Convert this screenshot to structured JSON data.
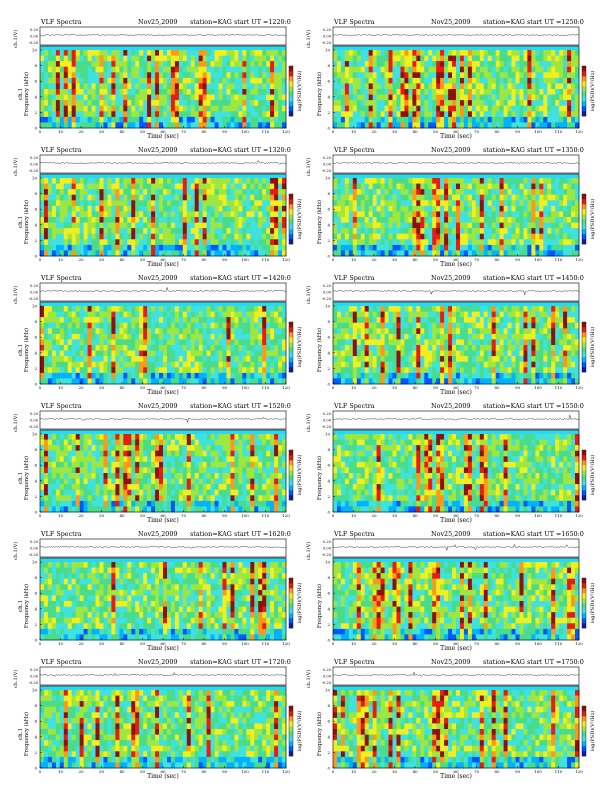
{
  "figure": {
    "header_left": "VLF Spectra",
    "date": "Nov25,2009",
    "station": "station=KAG",
    "start_prefix": "start UT ="
  },
  "chart_data": [
    {
      "type": "heatmap",
      "title": "VLF Spectra",
      "start_ut": "1220:0",
      "xlabel": "Time (sec)",
      "ylabel_top": "ch.1(V)",
      "ylabel_spec": "Frequency (kHz)",
      "ch_label": "ch.1",
      "colorbar_label": "log(PSD)(V²/Hz)",
      "xlim": [
        0,
        120
      ],
      "ylim": [
        0,
        10
      ],
      "x_ticks": [
        0,
        10,
        20,
        30,
        40,
        50,
        60,
        70,
        80,
        90,
        100,
        110,
        120
      ],
      "y_ticks": [
        0,
        2,
        4,
        6,
        8,
        10
      ],
      "top_yticks": [
        "0.20",
        "0.00",
        "-0.20"
      ],
      "intensity_scale": [
        -5,
        -3
      ]
    },
    {
      "type": "heatmap",
      "title": "VLF Spectra",
      "start_ut": "1250:0",
      "xlabel": "Time (sec)",
      "ylabel_top": "ch.1(V)",
      "ylabel_spec": "Frequency (kHz)",
      "ch_label": "",
      "colorbar_label": "log(PSD)(V²/Hz)",
      "xlim": [
        0,
        120
      ],
      "ylim": [
        0,
        10
      ],
      "x_ticks": [
        0,
        10,
        20,
        30,
        40,
        50,
        60,
        70,
        80,
        90,
        100,
        110,
        120
      ],
      "y_ticks": [
        0,
        2,
        4,
        6,
        8,
        10
      ],
      "top_yticks": [
        "0.20",
        "0.00",
        "-0.20"
      ],
      "intensity_scale": [
        -5,
        -3
      ]
    },
    {
      "type": "heatmap",
      "title": "VLF Spectra",
      "start_ut": "1320:0",
      "xlabel": "Time (sec)",
      "ylabel_top": "ch.1(V)",
      "ylabel_spec": "Frequency (kHz)",
      "ch_label": "ch.1",
      "colorbar_label": "log(PSD)(V²/Hz)",
      "xlim": [
        0,
        120
      ],
      "ylim": [
        0,
        10
      ],
      "x_ticks": [
        0,
        10,
        20,
        30,
        40,
        50,
        60,
        70,
        80,
        90,
        100,
        110,
        120
      ],
      "y_ticks": [
        0,
        2,
        4,
        6,
        8,
        10
      ],
      "top_yticks": [
        "0.20",
        "0.00",
        "-0.20"
      ],
      "intensity_scale": [
        -5,
        -3
      ]
    },
    {
      "type": "heatmap",
      "title": "VLF Spectra",
      "start_ut": "1350:0",
      "xlabel": "Time (sec)",
      "ylabel_top": "ch.1(V)",
      "ylabel_spec": "Frequency (kHz)",
      "ch_label": "",
      "colorbar_label": "log(PSD)(V²/Hz)",
      "xlim": [
        0,
        120
      ],
      "ylim": [
        0,
        10
      ],
      "x_ticks": [
        0,
        10,
        20,
        30,
        40,
        50,
        60,
        70,
        80,
        90,
        100,
        110,
        120
      ],
      "y_ticks": [
        0,
        2,
        4,
        6,
        8,
        10
      ],
      "top_yticks": [
        "0.20",
        "0.00",
        "-0.20"
      ],
      "intensity_scale": [
        -5,
        -3
      ]
    },
    {
      "type": "heatmap",
      "title": "VLF Spectra",
      "start_ut": "1420:0",
      "xlabel": "Time (sec)",
      "ylabel_top": "ch.1(V)",
      "ylabel_spec": "Frequency (kHz)",
      "ch_label": "ch.1",
      "colorbar_label": "log(PSD)(V²/Hz)",
      "xlim": [
        0,
        120
      ],
      "ylim": [
        0,
        10
      ],
      "x_ticks": [
        0,
        10,
        20,
        30,
        40,
        50,
        60,
        70,
        80,
        90,
        100,
        110,
        120
      ],
      "y_ticks": [
        0,
        2,
        4,
        6,
        8,
        10
      ],
      "top_yticks": [
        "0.20",
        "0.00",
        "-0.20"
      ],
      "intensity_scale": [
        -5,
        -3
      ]
    },
    {
      "type": "heatmap",
      "title": "VLF Spectra",
      "start_ut": "1450:0",
      "xlabel": "Time (sec)",
      "ylabel_top": "ch.1(V)",
      "ylabel_spec": "Frequency (kHz)",
      "ch_label": "",
      "colorbar_label": "log(PSD)(V²/Hz)",
      "xlim": [
        0,
        120
      ],
      "ylim": [
        0,
        10
      ],
      "x_ticks": [
        0,
        10,
        20,
        30,
        40,
        50,
        60,
        70,
        80,
        90,
        100,
        110,
        120
      ],
      "y_ticks": [
        0,
        2,
        4,
        6,
        8,
        10
      ],
      "top_yticks": [
        "0.20",
        "0.00",
        "-0.20"
      ],
      "intensity_scale": [
        -5,
        -3
      ]
    },
    {
      "type": "heatmap",
      "title": "VLF Spectra",
      "start_ut": "1520:0",
      "xlabel": "Time (sec)",
      "ylabel_top": "ch.1(V)",
      "ylabel_spec": "Frequency (kHz)",
      "ch_label": "ch.1",
      "colorbar_label": "log(PSD)(V²/Hz)",
      "xlim": [
        0,
        120
      ],
      "ylim": [
        0,
        10
      ],
      "x_ticks": [
        0,
        10,
        20,
        30,
        40,
        50,
        60,
        70,
        80,
        90,
        100,
        110,
        120
      ],
      "y_ticks": [
        0,
        2,
        4,
        6,
        8,
        10
      ],
      "top_yticks": [
        "0.20",
        "0.00",
        "-0.20"
      ],
      "intensity_scale": [
        -5,
        -3
      ]
    },
    {
      "type": "heatmap",
      "title": "VLF Spectra",
      "start_ut": "1550:0",
      "xlabel": "Time (sec)",
      "ylabel_top": "ch.1(V)",
      "ylabel_spec": "Frequency (kHz)",
      "ch_label": "",
      "colorbar_label": "log(PSD)(V²/Hz)",
      "xlim": [
        0,
        120
      ],
      "ylim": [
        0,
        10
      ],
      "x_ticks": [
        0,
        10,
        20,
        30,
        40,
        50,
        60,
        70,
        80,
        90,
        100,
        110,
        120
      ],
      "y_ticks": [
        0,
        2,
        4,
        6,
        8,
        10
      ],
      "top_yticks": [
        "0.20",
        "0.00",
        "-0.20"
      ],
      "intensity_scale": [
        -5,
        -3
      ]
    },
    {
      "type": "heatmap",
      "title": "VLF Spectra",
      "start_ut": "1620:0",
      "xlabel": "Time (sec)",
      "ylabel_top": "ch.1(V)",
      "ylabel_spec": "Frequency (kHz)",
      "ch_label": "ch.1",
      "colorbar_label": "log(PSD)(V²/Hz)",
      "xlim": [
        0,
        120
      ],
      "ylim": [
        0,
        10
      ],
      "x_ticks": [
        0,
        10,
        20,
        30,
        40,
        50,
        60,
        70,
        80,
        90,
        100,
        110,
        120
      ],
      "y_ticks": [
        0,
        2,
        4,
        6,
        8,
        10
      ],
      "top_yticks": [
        "0.20",
        "0.00",
        "-0.20"
      ],
      "intensity_scale": [
        -5,
        -3
      ]
    },
    {
      "type": "heatmap",
      "title": "VLF Spectra",
      "start_ut": "1650:0",
      "xlabel": "Time (sec)",
      "ylabel_top": "ch.1(V)",
      "ylabel_spec": "Frequency (kHz)",
      "ch_label": "",
      "colorbar_label": "log(PSD)(V²/Hz)",
      "xlim": [
        0,
        120
      ],
      "ylim": [
        0,
        10
      ],
      "x_ticks": [
        0,
        10,
        20,
        30,
        40,
        50,
        60,
        70,
        80,
        90,
        100,
        110,
        120
      ],
      "y_ticks": [
        0,
        2,
        4,
        6,
        8,
        10
      ],
      "top_yticks": [
        "0.20",
        "0.00",
        "-0.20"
      ],
      "intensity_scale": [
        -5,
        -3
      ]
    },
    {
      "type": "heatmap",
      "title": "VLF Spectra",
      "start_ut": "1720:0",
      "xlabel": "Time (sec)",
      "ylabel_top": "ch.1(V)",
      "ylabel_spec": "Frequency (kHz)",
      "ch_label": "ch.1",
      "colorbar_label": "log(PSD)(V²/Hz)",
      "xlim": [
        0,
        120
      ],
      "ylim": [
        0,
        10
      ],
      "x_ticks": [
        0,
        10,
        20,
        30,
        40,
        50,
        60,
        70,
        80,
        90,
        100,
        110,
        120
      ],
      "y_ticks": [
        0,
        2,
        4,
        6,
        8,
        10
      ],
      "top_yticks": [
        "0.20",
        "0.00",
        "-0.20"
      ],
      "intensity_scale": [
        -5,
        -3
      ]
    },
    {
      "type": "heatmap",
      "title": "VLF Spectra",
      "start_ut": "1750:0",
      "xlabel": "Time (sec)",
      "ylabel_top": "ch.1(V)",
      "ylabel_spec": "Frequency (kHz)",
      "ch_label": "",
      "colorbar_label": "log(PSD)(V²/Hz)",
      "xlim": [
        0,
        120
      ],
      "ylim": [
        0,
        10
      ],
      "x_ticks": [
        0,
        10,
        20,
        30,
        40,
        50,
        60,
        70,
        80,
        90,
        100,
        110,
        120
      ],
      "y_ticks": [
        0,
        2,
        4,
        6,
        8,
        10
      ],
      "top_yticks": [
        "0.20",
        "0.00",
        "-0.20"
      ],
      "intensity_scale": [
        -5,
        -3
      ]
    }
  ],
  "colors": {
    "background": "#ffffff",
    "colormap": [
      "#1a1aa8",
      "#0058ff",
      "#00b2ff",
      "#40e2e0",
      "#48dc8c",
      "#9ee640",
      "#f0f020",
      "#ff9818",
      "#e81c10",
      "#901010"
    ]
  }
}
